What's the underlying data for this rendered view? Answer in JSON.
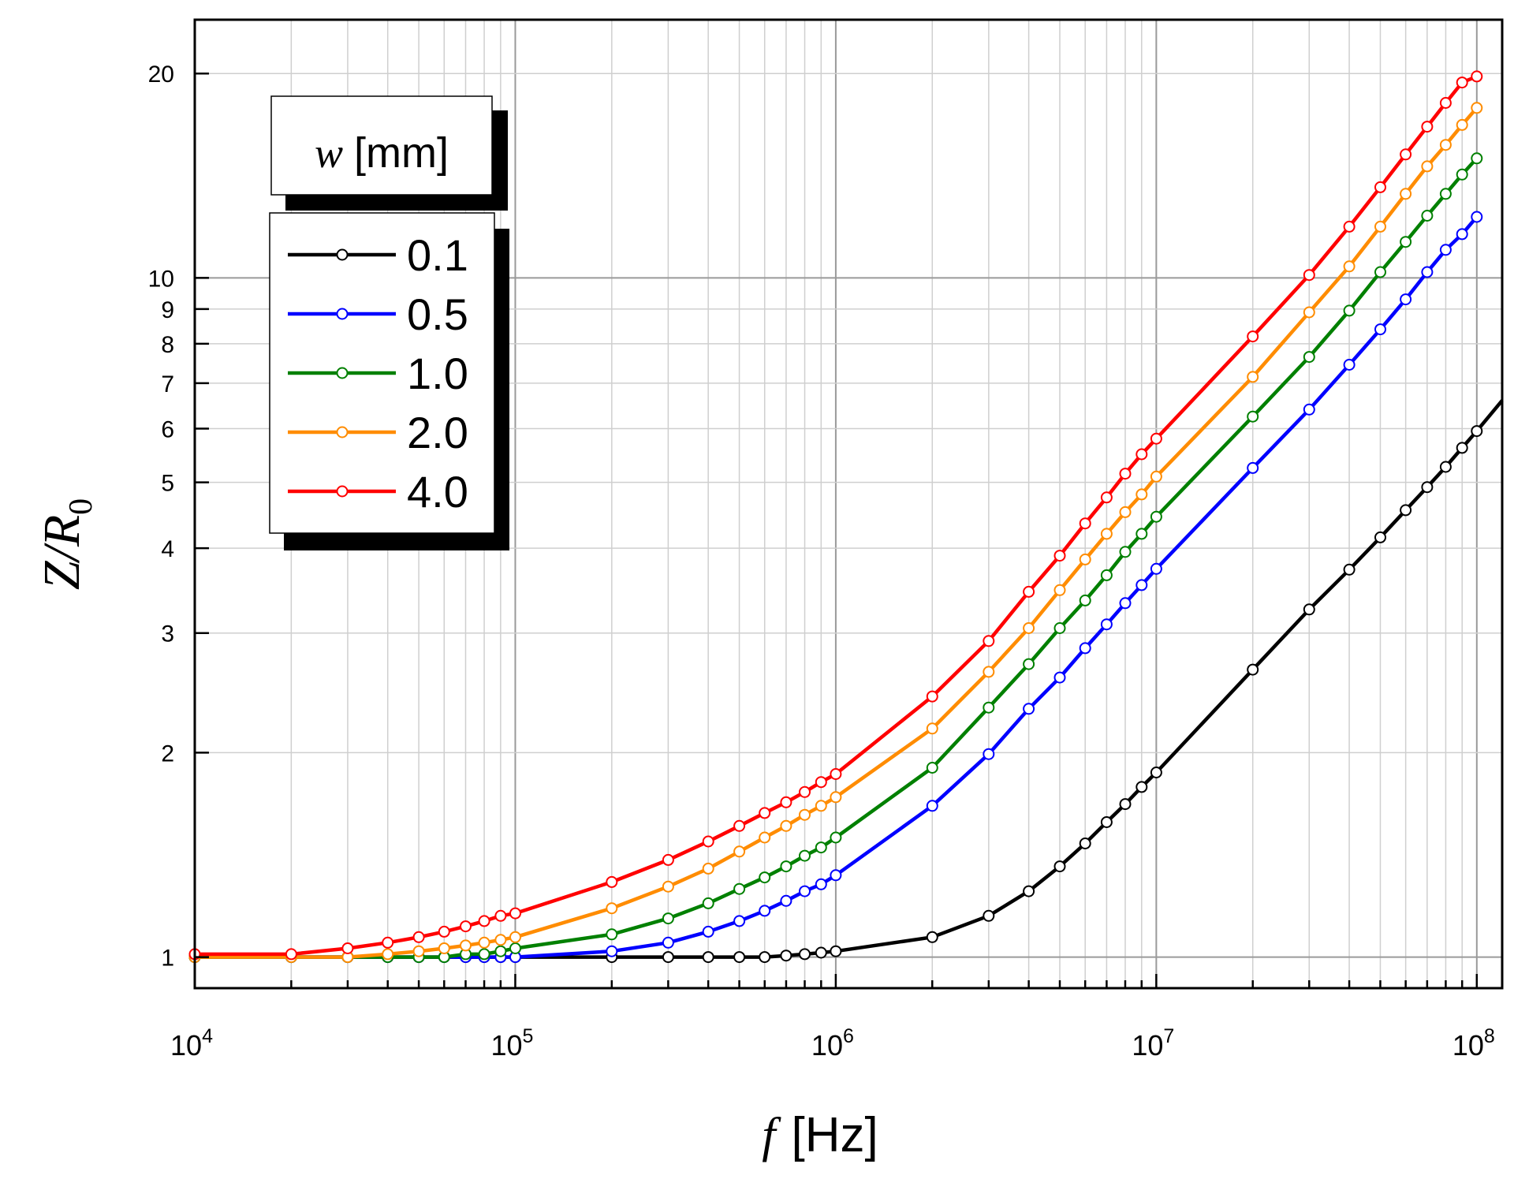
{
  "chart_data": {
    "type": "line",
    "x_scale": "log",
    "y_scale": "log",
    "xlim": [
      10000,
      120000000
    ],
    "ylim": [
      0.9,
      24
    ],
    "xlabel": {
      "var": "f",
      "unit": "[Hz]"
    },
    "ylabel": {
      "var": "Z/R",
      "sub": "0"
    },
    "x_ticks": [
      {
        "value": 10000,
        "base": "10",
        "exp": "4"
      },
      {
        "value": 100000,
        "base": "10",
        "exp": "5"
      },
      {
        "value": 1000000,
        "base": "10",
        "exp": "6"
      },
      {
        "value": 10000000,
        "base": "10",
        "exp": "7"
      },
      {
        "value": 100000000,
        "base": "10",
        "exp": "8"
      }
    ],
    "y_ticks": [
      {
        "value": 1,
        "label": "1"
      },
      {
        "value": 2,
        "label": "2"
      },
      {
        "value": 3,
        "label": "3"
      },
      {
        "value": 4,
        "label": "4"
      },
      {
        "value": 5,
        "label": "5"
      },
      {
        "value": 6,
        "label": "6"
      },
      {
        "value": 7,
        "label": "7"
      },
      {
        "value": 8,
        "label": "8"
      },
      {
        "value": 9,
        "label": "9"
      },
      {
        "value": 10,
        "label": "10"
      },
      {
        "value": 20,
        "label": "20"
      }
    ],
    "grid": true,
    "legend": {
      "title_var": "w",
      "title_unit": "[mm]",
      "position": "top-left"
    },
    "x": [
      10000,
      20000,
      30000,
      40000,
      50000,
      60000,
      70000,
      80000,
      90000,
      100000,
      200000,
      300000,
      400000,
      500000,
      600000,
      700000,
      800000,
      900000,
      1000000,
      2000000,
      3000000,
      4000000,
      5000000,
      6000000,
      7000000,
      8000000,
      9000000,
      10000000,
      20000000,
      30000000,
      40000000,
      50000000,
      60000000,
      70000000,
      80000000,
      90000000,
      100000000
    ],
    "series": [
      {
        "name": "0.1",
        "color": "#000000",
        "values": [
          1.0,
          1.0,
          1.0,
          1.0,
          1.0,
          1.0,
          1.0,
          1.0,
          1.0,
          1.0,
          1.0,
          1.0,
          1.0,
          1.0,
          1.0,
          1.005,
          1.01,
          1.015,
          1.02,
          1.07,
          1.15,
          1.25,
          1.36,
          1.47,
          1.58,
          1.68,
          1.78,
          1.87,
          2.65,
          3.25,
          3.72,
          4.15,
          4.55,
          4.92,
          5.27,
          5.62,
          5.95
        ],
        "extend_to": {
          "x": 120000000,
          "y": 6.6
        }
      },
      {
        "name": "0.5",
        "color": "#0000ff",
        "values": [
          1.0,
          1.0,
          1.0,
          1.0,
          1.0,
          1.0,
          1.0,
          1.0,
          1.0,
          1.0,
          1.02,
          1.05,
          1.09,
          1.13,
          1.17,
          1.21,
          1.25,
          1.28,
          1.32,
          1.67,
          1.99,
          2.32,
          2.58,
          2.85,
          3.09,
          3.32,
          3.53,
          3.73,
          5.25,
          6.4,
          7.45,
          8.4,
          9.3,
          10.2,
          11.0,
          11.6,
          12.3
        ]
      },
      {
        "name": "1.0",
        "color": "#008000",
        "values": [
          1.0,
          1.0,
          1.0,
          1.0,
          1.0,
          1.0,
          1.01,
          1.01,
          1.02,
          1.03,
          1.08,
          1.14,
          1.2,
          1.26,
          1.31,
          1.36,
          1.41,
          1.45,
          1.5,
          1.9,
          2.33,
          2.7,
          3.05,
          3.35,
          3.65,
          3.95,
          4.2,
          4.45,
          6.25,
          7.65,
          8.95,
          10.2,
          11.3,
          12.35,
          13.3,
          14.2,
          15.0
        ]
      },
      {
        "name": "2.0",
        "color": "#ff8c00",
        "values": [
          1.0,
          1.0,
          1.0,
          1.01,
          1.02,
          1.03,
          1.04,
          1.05,
          1.06,
          1.07,
          1.18,
          1.27,
          1.35,
          1.43,
          1.5,
          1.56,
          1.62,
          1.67,
          1.72,
          2.17,
          2.63,
          3.05,
          3.47,
          3.85,
          4.2,
          4.52,
          4.8,
          5.1,
          7.15,
          8.9,
          10.4,
          11.9,
          13.3,
          14.6,
          15.7,
          16.8,
          17.8
        ]
      },
      {
        "name": "4.0",
        "color": "#ff0000",
        "values": [
          1.01,
          1.01,
          1.03,
          1.05,
          1.07,
          1.09,
          1.11,
          1.13,
          1.15,
          1.16,
          1.29,
          1.39,
          1.48,
          1.56,
          1.63,
          1.69,
          1.75,
          1.81,
          1.86,
          2.42,
          2.92,
          3.45,
          3.9,
          4.35,
          4.75,
          5.15,
          5.5,
          5.8,
          8.2,
          10.1,
          11.9,
          13.6,
          15.2,
          16.7,
          18.1,
          19.4,
          19.8
        ]
      }
    ]
  }
}
